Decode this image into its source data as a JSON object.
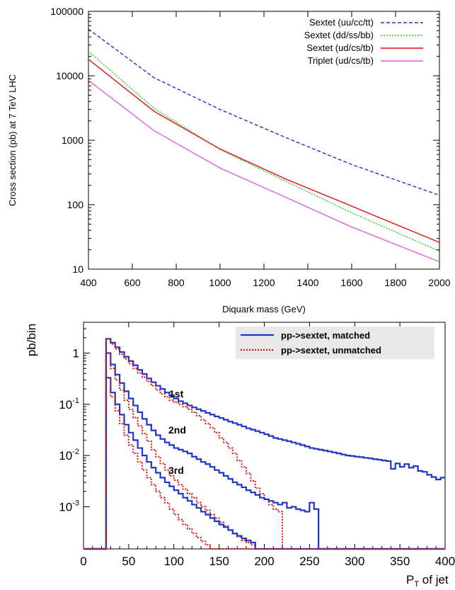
{
  "chart_data": [
    {
      "type": "line",
      "xlabel": "Diquark mass (GeV)",
      "ylabel": "Cross section (pb) at 7 TeV LHC",
      "xlim": [
        400,
        2000
      ],
      "ylim": [
        10,
        100000
      ],
      "yscale": "log",
      "xticks": [
        "400",
        "600",
        "800",
        "1000",
        "1200",
        "1400",
        "1600",
        "1800",
        "2000"
      ],
      "yticks": [
        "10",
        "100",
        "1000",
        "10000",
        "100000"
      ],
      "legend_position": "top-right",
      "series": [
        {
          "name": "Sextet (uu/cc/tt)",
          "color": "#1f35c8",
          "dash": "dashed",
          "x": [
            400,
            700,
            1000,
            1300,
            1600,
            2000
          ],
          "y": [
            53000,
            9300,
            3000,
            1100,
            420,
            140
          ]
        },
        {
          "name": "Sextet (dd/ss/bb)",
          "color": "#22cc22",
          "dash": "dotted",
          "x": [
            400,
            700,
            1000,
            1300,
            1600,
            2000
          ],
          "y": [
            24000,
            3100,
            720,
            230,
            75,
            19
          ]
        },
        {
          "name": "Sextet (ud/cs/tb)",
          "color": "#dd1111",
          "dash": "solid",
          "x": [
            400,
            700,
            1000,
            1300,
            1600,
            2000
          ],
          "y": [
            18000,
            2800,
            730,
            250,
            95,
            26
          ]
        },
        {
          "name": "Triplet (ud/cs/tb)",
          "color": "#e060e0",
          "dash": "solid",
          "x": [
            400,
            700,
            1000,
            1300,
            1600,
            2000
          ],
          "y": [
            8500,
            1400,
            370,
            130,
            45,
            13
          ]
        }
      ]
    },
    {
      "type": "line",
      "ylabel": "pb/bin",
      "xlabel_main": "P",
      "xlabel_sub": "T",
      "xlabel_rest": " of jet",
      "xlim": [
        0,
        400
      ],
      "ylim": [
        0.00015,
        4
      ],
      "yscale": "log",
      "xticks": [
        "0",
        "50",
        "100",
        "150",
        "200",
        "250",
        "300",
        "350",
        "400"
      ],
      "yticks": [
        {
          "base": "1",
          "exp": ""
        },
        {
          "base": "10",
          "exp": "-1"
        },
        {
          "base": "10",
          "exp": "-2"
        },
        {
          "base": "10",
          "exp": "-3"
        }
      ],
      "legend_position": "top-right",
      "annotations": [
        "1st",
        "2nd",
        "3rd"
      ],
      "series": [
        {
          "name": "pp->sextet, matched",
          "color": "#1f35c8",
          "dash": "solid"
        },
        {
          "name": "pp->sextet, unmatched",
          "color": "#dd1111",
          "dash": "dotted"
        }
      ],
      "bin_edges": [
        0,
        25,
        30,
        35,
        40,
        45,
        50,
        55,
        60,
        65,
        70,
        75,
        80,
        85,
        90,
        95,
        100,
        105,
        110,
        115,
        120,
        125,
        130,
        135,
        140,
        145,
        150,
        155,
        160,
        165,
        170,
        175,
        180,
        185,
        190,
        195,
        200,
        205,
        210,
        215,
        220,
        225,
        230,
        235,
        240,
        245,
        250,
        255,
        260,
        265,
        270,
        275,
        280,
        285,
        290,
        295,
        300,
        305,
        310,
        315,
        320,
        325,
        330,
        335,
        340,
        345,
        350,
        355,
        360,
        365,
        370,
        375,
        380,
        385,
        390,
        395,
        400
      ],
      "hist": [
        {
          "series": 0,
          "label": "1st",
          "values": [
            0.00015,
            1.9,
            1.6,
            1.3,
            1.05,
            0.85,
            0.7,
            0.58,
            0.47,
            0.39,
            0.32,
            0.27,
            0.23,
            0.2,
            0.17,
            0.15,
            0.13,
            0.115,
            0.105,
            0.095,
            0.087,
            0.08,
            0.074,
            0.068,
            0.063,
            0.058,
            0.054,
            0.05,
            0.046,
            0.043,
            0.04,
            0.037,
            0.034,
            0.032,
            0.03,
            0.028,
            0.026,
            0.024,
            0.022,
            0.021,
            0.02,
            0.019,
            0.018,
            0.017,
            0.016,
            0.015,
            0.014,
            0.0135,
            0.013,
            0.0125,
            0.012,
            0.0115,
            0.011,
            0.0105,
            0.01,
            0.0098,
            0.0095,
            0.0093,
            0.009,
            0.0088,
            0.0085,
            0.0083,
            0.008,
            0.0078,
            0.0055,
            0.007,
            0.006,
            0.0068,
            0.0058,
            0.0062,
            0.005,
            0.0048,
            0.0042,
            0.0038,
            0.0034,
            0.0037
          ]
        },
        {
          "series": 1,
          "label": "1st",
          "values": [
            0.00015,
            1.9,
            1.5,
            1.2,
            0.95,
            0.77,
            0.62,
            0.5,
            0.41,
            0.34,
            0.28,
            0.23,
            0.19,
            0.16,
            0.14,
            0.12,
            0.11,
            0.1,
            0.09,
            0.08,
            0.07,
            0.06,
            0.05,
            0.042,
            0.035,
            0.028,
            0.022,
            0.018,
            0.014,
            0.011,
            0.008,
            0.006,
            0.0045,
            0.0032,
            0.0023,
            0.0018,
            0.0014,
            0.0011,
            0.0009,
            0.0008,
            0.00015,
            0.00015,
            0.00015,
            0.00015,
            0.00015,
            0.00015,
            0.00015,
            0.00015,
            0.00015,
            0.00015,
            0.00015,
            0.00015,
            0.00015,
            0.00015,
            0.00015,
            0.00015,
            0.00015,
            0.00015,
            0.00015,
            0.00015,
            0.00015,
            0.00015,
            0.00015,
            0.00015,
            0.00015,
            0.00015,
            0.00015,
            0.00015,
            0.00015,
            0.00015,
            0.00015,
            0.00015,
            0.00015,
            0.00015,
            0.00015,
            0.00015
          ]
        },
        {
          "series": 0,
          "label": "2nd",
          "values": [
            0.00015,
            1.0,
            0.6,
            0.38,
            0.26,
            0.18,
            0.13,
            0.095,
            0.07,
            0.052,
            0.04,
            0.031,
            0.025,
            0.021,
            0.018,
            0.016,
            0.014,
            0.013,
            0.012,
            0.011,
            0.0095,
            0.0085,
            0.0075,
            0.0068,
            0.006,
            0.0052,
            0.0046,
            0.004,
            0.0035,
            0.003,
            0.0027,
            0.0024,
            0.0021,
            0.0019,
            0.0017,
            0.0015,
            0.0014,
            0.0013,
            0.0012,
            0.0011,
            0.0012,
            0.00095,
            0.001,
            0.0009,
            0.00085,
            0.0008,
            0.0012,
            0.0009,
            0.00015,
            0.00015,
            0.00015,
            0.00015,
            0.00015,
            0.00015,
            0.00015,
            0.00015,
            0.00015,
            0.00015,
            0.00015,
            0.00015,
            0.00015,
            0.00015,
            0.00015,
            0.00015,
            0.00015,
            0.00015,
            0.00015,
            0.00015,
            0.00015,
            0.00015,
            0.00015,
            0.00015,
            0.00015,
            0.00015,
            0.00015,
            0.00015
          ]
        },
        {
          "series": 1,
          "label": "2nd",
          "values": [
            0.00015,
            1.0,
            0.5,
            0.3,
            0.19,
            0.12,
            0.08,
            0.055,
            0.038,
            0.027,
            0.019,
            0.013,
            0.0095,
            0.007,
            0.0052,
            0.004,
            0.0033,
            0.0027,
            0.0022,
            0.0018,
            0.0015,
            0.0012,
            0.001,
            0.00085,
            0.0007,
            0.0006,
            0.0005,
            0.00042,
            0.00035,
            0.0003,
            0.00026,
            0.00022,
            0.0002,
            0.00018,
            0.00015,
            0.00015,
            0.00015,
            0.00015,
            0.00015,
            0.00015,
            0.00015,
            0.00015,
            0.00015,
            0.00015,
            0.00015,
            0.00015,
            0.00015,
            0.00015,
            0.00015,
            0.00015,
            0.00015,
            0.00015,
            0.00015,
            0.00015,
            0.00015,
            0.00015,
            0.00015,
            0.00015,
            0.00015,
            0.00015,
            0.00015,
            0.00015,
            0.00015,
            0.00015,
            0.00015,
            0.00015,
            0.00015,
            0.00015,
            0.00015,
            0.00015,
            0.00015,
            0.00015,
            0.00015,
            0.00015,
            0.00015,
            0.00015
          ]
        },
        {
          "series": 0,
          "label": "3rd",
          "values": [
            0.00015,
            0.33,
            0.17,
            0.1,
            0.063,
            0.04,
            0.028,
            0.02,
            0.014,
            0.01,
            0.0075,
            0.0058,
            0.0046,
            0.0037,
            0.003,
            0.0025,
            0.0021,
            0.0018,
            0.0015,
            0.0013,
            0.0011,
            0.00095,
            0.0008,
            0.0007,
            0.0006,
            0.00052,
            0.00045,
            0.0004,
            0.00035,
            0.0003,
            0.00027,
            0.00024,
            0.00022,
            0.0002,
            0.00015,
            0.00015,
            0.00015,
            0.00015,
            0.00015,
            0.00015,
            0.00015,
            0.00015,
            0.00015,
            0.00015,
            0.00015,
            0.00015,
            0.00015,
            0.00015,
            0.00015,
            0.00015,
            0.00015,
            0.00015,
            0.00015,
            0.00015,
            0.00015,
            0.00015,
            0.00015,
            0.00015,
            0.00015,
            0.00015,
            0.00015,
            0.00015,
            0.00015,
            0.00015,
            0.00015,
            0.00015,
            0.00015,
            0.00015,
            0.00015,
            0.00015,
            0.00015,
            0.00015,
            0.00015,
            0.00015,
            0.00015,
            0.00015
          ]
        },
        {
          "series": 1,
          "label": "3rd",
          "values": [
            0.00015,
            0.33,
            0.14,
            0.075,
            0.042,
            0.025,
            0.016,
            0.011,
            0.0075,
            0.0052,
            0.0037,
            0.0027,
            0.002,
            0.0015,
            0.0012,
            0.0009,
            0.0007,
            0.00056,
            0.00045,
            0.00037,
            0.0003,
            0.00025,
            0.00021,
            0.00018,
            0.00015,
            0.00015,
            0.00015,
            0.00015,
            0.00015,
            0.00015,
            0.00015,
            0.00015,
            0.00015,
            0.00015,
            0.00015,
            0.00015,
            0.00015,
            0.00015,
            0.00015,
            0.00015,
            0.00015,
            0.00015,
            0.00015,
            0.00015,
            0.00015,
            0.00015,
            0.00015,
            0.00015,
            0.00015,
            0.00015,
            0.00015,
            0.00015,
            0.00015,
            0.00015,
            0.00015,
            0.00015,
            0.00015,
            0.00015,
            0.00015,
            0.00015,
            0.00015,
            0.00015,
            0.00015,
            0.00015,
            0.00015,
            0.00015,
            0.00015,
            0.00015,
            0.00015,
            0.00015,
            0.00015,
            0.00015,
            0.00015,
            0.00015,
            0.00015,
            0.00015
          ]
        }
      ]
    }
  ]
}
